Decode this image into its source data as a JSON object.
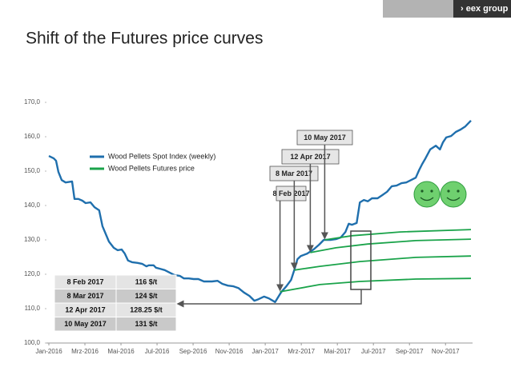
{
  "chart_data": {
    "type": "line",
    "logo": "› eex group",
    "title": "Shift of the Futures price curves",
    "xlim": [
      0,
      23.5
    ],
    "xticks": [
      {
        "value": 0,
        "label": "Jan-2016"
      },
      {
        "value": 2,
        "label": "Mrz-2016"
      },
      {
        "value": 4,
        "label": "Mai-2016"
      },
      {
        "value": 6,
        "label": "Jul-2016"
      },
      {
        "value": 8,
        "label": "Sep-2016"
      },
      {
        "value": 10,
        "label": "Nov-2016"
      },
      {
        "value": 12,
        "label": "Jan-2017"
      },
      {
        "value": 14,
        "label": "Mrz-2017"
      },
      {
        "value": 16,
        "label": "Mai-2017"
      },
      {
        "value": 18,
        "label": "Jul-2017"
      },
      {
        "value": 20,
        "label": "Sep-2017"
      },
      {
        "value": 22,
        "label": "Nov-2017"
      }
    ],
    "ylim": [
      100,
      170
    ],
    "yticks": [
      {
        "value": 100,
        "label": "100,0"
      },
      {
        "value": 110,
        "label": "110,0"
      },
      {
        "value": 120,
        "label": "120,0"
      },
      {
        "value": 130,
        "label": "130,0"
      },
      {
        "value": 140,
        "label": "140,0"
      },
      {
        "value": 150,
        "label": "150,0"
      },
      {
        "value": 160,
        "label": "160,0"
      },
      {
        "value": 170,
        "label": "170,0"
      }
    ],
    "series": [
      {
        "name": "Wood Pellets Spot Index (weekly)",
        "color": "#1f6fad",
        "x": [
          0,
          0.27,
          0.4,
          0.53,
          0.71,
          0.93,
          1.29,
          1.42,
          1.64,
          1.86,
          2.04,
          2.31,
          2.53,
          2.79,
          2.97,
          3.33,
          3.6,
          3.81,
          4.04,
          4.21,
          4.39,
          4.61,
          4.92,
          5.19,
          5.41,
          5.54,
          5.81,
          5.94,
          6.16,
          6.43,
          6.7,
          6.96,
          7.27,
          7.49,
          7.76,
          8.03,
          8.29,
          8.6,
          9.05,
          9.36,
          9.62,
          9.93,
          10.24,
          10.51,
          10.82,
          11.13,
          11.4,
          11.57,
          11.93,
          12.2,
          12.55,
          12.9,
          13.17,
          13.44,
          13.61,
          13.79,
          13.97,
          14.32,
          14.68,
          14.99,
          15.25,
          15.65,
          15.92,
          16.19,
          16.45,
          16.63,
          16.81,
          17.07,
          17.25,
          17.47,
          17.69,
          17.92,
          18.23,
          18.49,
          18.76,
          19.02,
          19.29,
          19.56,
          19.82,
          20.09,
          20.35,
          20.53,
          20.71,
          20.89,
          21.15,
          21.46,
          21.69,
          21.86,
          22.04,
          22.31,
          22.57,
          22.84,
          23.1,
          23.41
        ],
        "values": [
          154.4,
          153.7,
          153.0,
          149.8,
          147.4,
          146.7,
          147.0,
          141.9,
          141.9,
          141.4,
          140.7,
          140.9,
          139.5,
          138.6,
          134.0,
          129.5,
          127.7,
          127.0,
          127.2,
          126.0,
          124.0,
          123.5,
          123.3,
          123.0,
          122.3,
          122.6,
          122.6,
          121.9,
          121.6,
          121.2,
          120.5,
          119.8,
          119.5,
          118.8,
          118.8,
          118.6,
          118.6,
          117.9,
          117.9,
          118.1,
          117.2,
          116.7,
          116.5,
          116.0,
          114.7,
          113.7,
          112.3,
          112.6,
          113.5,
          113.0,
          111.9,
          114.9,
          116.5,
          118.4,
          121.2,
          124.4,
          125.3,
          126.0,
          127.2,
          128.6,
          130.0,
          130.0,
          130.2,
          130.7,
          132.3,
          134.7,
          134.4,
          134.9,
          140.9,
          141.6,
          141.2,
          142.1,
          142.1,
          143.0,
          144.0,
          145.6,
          145.8,
          146.5,
          146.7,
          147.4,
          148.1,
          150.2,
          152.1,
          153.7,
          156.3,
          157.4,
          156.3,
          158.4,
          159.8,
          160.2,
          161.4,
          162.1,
          163.0,
          164.7
        ]
      },
      {
        "name": "Wood Pellets Futures price",
        "color": "#1aa34a",
        "curves": [
          {
            "x": [
              12.82,
              15.03,
              17.25,
              20.35,
              23.41
            ],
            "values": [
              114.9,
              117.0,
              117.9,
              118.6,
              118.8
            ]
          },
          {
            "x": [
              13.61,
              15.03,
              17.25,
              20.35,
              23.41
            ],
            "values": [
              121.2,
              122.3,
              123.7,
              124.9,
              125.3
            ]
          },
          {
            "x": [
              14.5,
              15.92,
              17.69,
              20.35,
              23.41
            ],
            "values": [
              126.3,
              127.7,
              128.8,
              129.8,
              130.2
            ]
          },
          {
            "x": [
              15.3,
              16.81,
              19.47,
              23.41
            ],
            "values": [
              130.0,
              131.2,
              132.3,
              133.0
            ]
          }
        ]
      }
    ],
    "table": {
      "rows": [
        [
          "8 Feb 2017",
          "116 $/t"
        ],
        [
          "8 Mar 2017",
          "124 $/t"
        ],
        [
          "12 Apr 2017",
          "128.25 $/t"
        ],
        [
          "10 May 2017",
          "131 $/t"
        ]
      ]
    }
  }
}
